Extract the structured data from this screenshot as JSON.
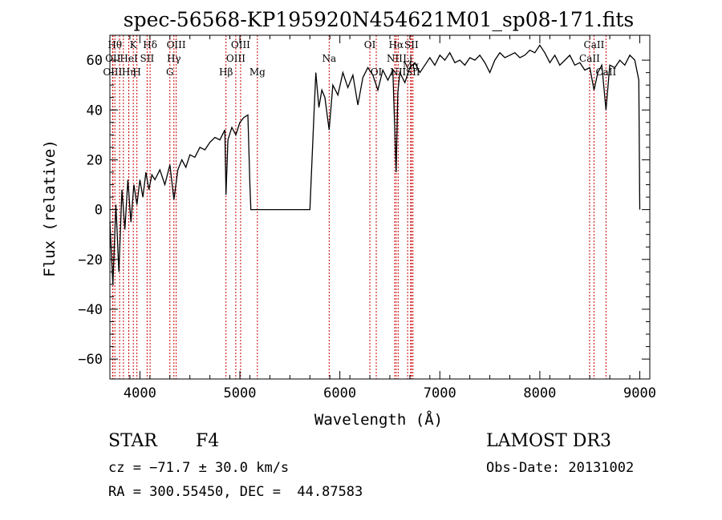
{
  "chart_data": {
    "type": "line",
    "title": "spec-56568-KP195920N454621M01_sp08-171.fits",
    "xlabel": "Wavelength (Å)",
    "ylabel": "Flux (relative)",
    "xlim": [
      3700,
      9100
    ],
    "ylim": [
      -68,
      70
    ],
    "x_ticks": [
      4000,
      5000,
      6000,
      7000,
      8000,
      9000
    ],
    "x_tick_labels": [
      "4000",
      "5000",
      "6000",
      "7000",
      "8000",
      "9000"
    ],
    "y_ticks": [
      -60,
      -40,
      -20,
      0,
      20,
      40,
      60
    ],
    "y_tick_labels": [
      "−60",
      "−40",
      "−20",
      "0",
      "20",
      "40",
      "60"
    ],
    "grid": false,
    "line_color": "#000000",
    "marker_color": "#cc0000",
    "series": [
      {
        "x": [
          3700,
          3730,
          3760,
          3790,
          3820,
          3850,
          3880,
          3910,
          3940,
          3970,
          4000,
          4030,
          4060,
          4090,
          4120,
          4150,
          4200,
          4250,
          4300,
          4340,
          4380,
          4420,
          4460,
          4500,
          4550,
          4600,
          4650,
          4700,
          4750,
          4800,
          4850,
          4861,
          4880,
          4920,
          4960,
          5000,
          5040,
          5080,
          5100,
          5110,
          5150,
          5300,
          5500,
          5700,
          5740,
          5760,
          5790,
          5820,
          5850,
          5893,
          5930,
          5980,
          6030,
          6080,
          6130,
          6180,
          6230,
          6280,
          6330,
          6380,
          6430,
          6480,
          6530,
          6563,
          6580,
          6600,
          6650,
          6700,
          6750,
          6800,
          6850,
          6900,
          6950,
          7000,
          7050,
          7100,
          7150,
          7200,
          7250,
          7300,
          7350,
          7400,
          7450,
          7500,
          7550,
          7600,
          7650,
          7700,
          7750,
          7800,
          7850,
          7900,
          7950,
          8000,
          8050,
          8100,
          8150,
          8200,
          8250,
          8300,
          8350,
          8400,
          8450,
          8500,
          8542,
          8580,
          8620,
          8662,
          8700,
          8750,
          8800,
          8850,
          8900,
          8950,
          8990,
          9000
        ],
        "y": [
          -5,
          -30,
          2,
          -25,
          8,
          -8,
          12,
          -5,
          10,
          2,
          12,
          5,
          15,
          8,
          14,
          12,
          16,
          10,
          18,
          4,
          16,
          20,
          17,
          22,
          21,
          25,
          24,
          27,
          29,
          28,
          32,
          6,
          28,
          33,
          30,
          35,
          37,
          38,
          10,
          0,
          0,
          0,
          0,
          0,
          37,
          55,
          41,
          48,
          45,
          32,
          50,
          46,
          55,
          49,
          54,
          42,
          53,
          57,
          54,
          48,
          56,
          52,
          56,
          15,
          47,
          55,
          51,
          57,
          59,
          55,
          58,
          61,
          58,
          62,
          60,
          63,
          59,
          60,
          58,
          61,
          60,
          62,
          59,
          55,
          60,
          63,
          61,
          62,
          63,
          61,
          62,
          64,
          63,
          66,
          63,
          59,
          62,
          58,
          60,
          62,
          58,
          59,
          56,
          57,
          48,
          55,
          58,
          40,
          58,
          57,
          60,
          58,
          62,
          60,
          52,
          0
        ]
      }
    ],
    "line_markers": [
      {
        "x": 3750,
        "label": "Hθ",
        "row": 1
      },
      {
        "x": 3730,
        "label": "OII",
        "row": 2
      },
      {
        "x": 3727,
        "label": "OIII",
        "row": 3
      },
      {
        "x": 3797,
        "label": "",
        "row": 0
      },
      {
        "x": 3835,
        "label": "",
        "row": 0
      },
      {
        "x": 3889,
        "label": "HeI",
        "row": 2
      },
      {
        "x": 3889,
        "label": "Hη",
        "row": 3
      },
      {
        "x": 3934,
        "label": "K",
        "row": 1
      },
      {
        "x": 3970,
        "label": "H",
        "row": 3
      },
      {
        "x": 4072,
        "label": "SII",
        "row": 2
      },
      {
        "x": 4102,
        "label": "Hδ",
        "row": 1
      },
      {
        "x": 4300,
        "label": "G",
        "row": 3
      },
      {
        "x": 4340,
        "label": "Hγ",
        "row": 2
      },
      {
        "x": 4363,
        "label": "OIII",
        "row": 1
      },
      {
        "x": 4861,
        "label": "Hβ",
        "row": 3
      },
      {
        "x": 4959,
        "label": "OIII",
        "row": 2
      },
      {
        "x": 5007,
        "label": "OIII",
        "row": 1
      },
      {
        "x": 5175,
        "label": "Mg",
        "row": 3
      },
      {
        "x": 5893,
        "label": "Na",
        "row": 2
      },
      {
        "x": 6300,
        "label": "OI",
        "row": 1
      },
      {
        "x": 6364,
        "label": "OI",
        "row": 3
      },
      {
        "x": 6548,
        "label": "NII",
        "row": 2
      },
      {
        "x": 6563,
        "label": "Hα",
        "row": 1
      },
      {
        "x": 6583,
        "label": "NII",
        "row": 3
      },
      {
        "x": 6678,
        "label": "Li",
        "row": 2
      },
      {
        "x": 6708,
        "label": "Mg",
        "row": 2.5
      },
      {
        "x": 6716,
        "label": "SII",
        "row": 1
      },
      {
        "x": 6731,
        "label": "SII",
        "row": 3
      },
      {
        "x": 8498,
        "label": "CaII",
        "row": 2
      },
      {
        "x": 8542,
        "label": "CaII",
        "row": 1
      },
      {
        "x": 8662,
        "label": "CaII",
        "row": 3
      }
    ]
  },
  "info": {
    "object_class": "STAR",
    "subclass": "F4",
    "survey": "LAMOST DR3",
    "cz": "cz = −71.7 ± 30.0 km/s",
    "obs_date": "Obs-Date: 20131002",
    "coords": "RA = 300.55450, DEC =  44.87583"
  }
}
